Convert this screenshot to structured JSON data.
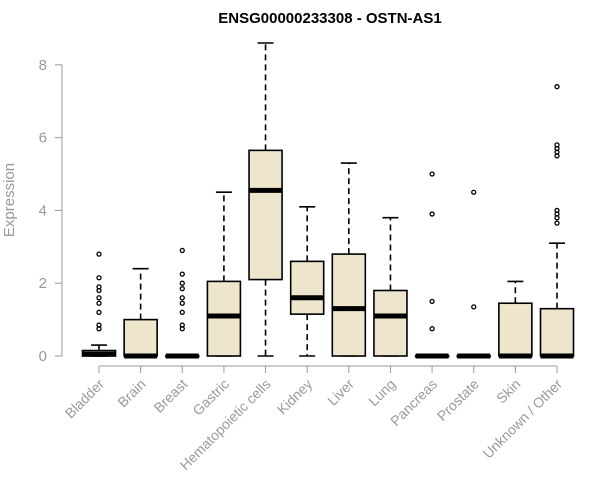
{
  "chart_data": {
    "type": "box",
    "title": "ENSG00000233308 - OSTN-AS1",
    "xlabel": "",
    "ylabel": "Expression",
    "ylim": [
      0,
      8.6
    ],
    "yticks": [
      0,
      2,
      4,
      6,
      8
    ],
    "grid": false,
    "legend": "none",
    "box_fill": "#ede6cc",
    "box_stroke": "#000000",
    "categories": [
      "Bladder",
      "Brain",
      "Breast",
      "Gastric",
      "Hematopoietic cells",
      "Kidney",
      "Liver",
      "Lung",
      "Pancreas",
      "Prostate",
      "Skin",
      "Unknown / Other"
    ],
    "boxes": [
      {
        "category": "Bladder",
        "min": 0,
        "q1": 0,
        "median": 0.05,
        "q3": 0.15,
        "max": 0.3,
        "outliers": [
          0.75,
          0.85,
          1.2,
          1.45,
          1.6,
          1.8,
          1.9,
          2.15,
          2.8
        ]
      },
      {
        "category": "Brain",
        "min": 0,
        "q1": 0,
        "median": 0,
        "q3": 1.0,
        "max": 2.4,
        "outliers": []
      },
      {
        "category": "Breast",
        "min": 0,
        "q1": 0,
        "median": 0,
        "q3": 0,
        "max": 0,
        "outliers": [
          0.75,
          0.85,
          1.2,
          1.45,
          1.6,
          1.85,
          2.0,
          2.25,
          2.9
        ]
      },
      {
        "category": "Gastric",
        "min": 0,
        "q1": 0,
        "median": 1.1,
        "q3": 2.05,
        "max": 4.5,
        "outliers": []
      },
      {
        "category": "Hematopoietic cells",
        "min": 0,
        "q1": 2.1,
        "median": 4.55,
        "q3": 5.65,
        "max": 8.6,
        "outliers": []
      },
      {
        "category": "Kidney",
        "min": 0,
        "q1": 1.15,
        "median": 1.6,
        "q3": 2.6,
        "max": 4.1,
        "outliers": []
      },
      {
        "category": "Liver",
        "min": 0,
        "q1": 0,
        "median": 1.3,
        "q3": 2.8,
        "max": 5.3,
        "outliers": []
      },
      {
        "category": "Lung",
        "min": 0,
        "q1": 0,
        "median": 1.1,
        "q3": 1.8,
        "max": 3.8,
        "outliers": []
      },
      {
        "category": "Pancreas",
        "min": 0,
        "q1": 0,
        "median": 0,
        "q3": 0,
        "max": 0,
        "outliers": [
          0.75,
          1.5,
          3.9,
          5.0
        ]
      },
      {
        "category": "Prostate",
        "min": 0,
        "q1": 0,
        "median": 0,
        "q3": 0,
        "max": 0,
        "outliers": [
          1.35,
          4.5
        ]
      },
      {
        "category": "Skin",
        "min": 0,
        "q1": 0,
        "median": 0,
        "q3": 1.45,
        "max": 2.05,
        "outliers": []
      },
      {
        "category": "Unknown / Other",
        "min": 0,
        "q1": 0,
        "median": 0,
        "q3": 1.3,
        "max": 3.1,
        "outliers": [
          3.65,
          3.8,
          3.9,
          4.0,
          5.5,
          5.6,
          5.7,
          5.8,
          7.4
        ]
      }
    ]
  }
}
